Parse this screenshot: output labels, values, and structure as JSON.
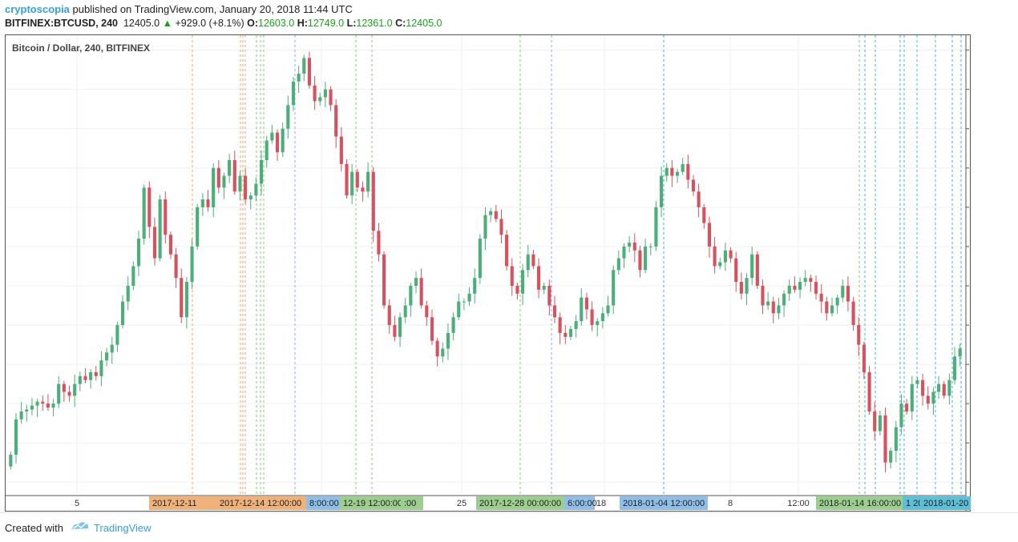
{
  "header": {
    "author": "cryptoscopia",
    "published": "published on TradingView.com, January 20, 2018 11:44 UTC",
    "symbol": "BITFINEX:BTCUSD, 240",
    "last": "12405.0",
    "change": "+929.0 (+8.1%)",
    "o_label": "O:",
    "o_value": "12603.0",
    "h_label": "H:",
    "h_value": "12749.0",
    "l_label": "L:",
    "l_value": "12361.0",
    "c_label": "C:",
    "c_value": "12405.0"
  },
  "footer": {
    "created_with": "Created with",
    "brand": "TradingView"
  },
  "colors": {
    "up": "#4cae79",
    "down": "#d6525f",
    "grid": "#eef0f2",
    "orange": "#f0b27a",
    "green": "#9ccf8f",
    "blue": "#8fbfe8",
    "teal": "#5cc0d8"
  },
  "chart_data": {
    "type": "candlestick",
    "title": "Bitcoin / Dollar, 240, BITFINEX",
    "ylim": [
      8700,
      20400
    ],
    "y_ticks": [
      "20000.0",
      "19000.0",
      "18000.0",
      "17000.0",
      "16000.0",
      "15000.0",
      "14000.0",
      "13000.0",
      "12000.0",
      "11000.0",
      "10000.0",
      "9000.0"
    ],
    "x_tick_labels": [
      "5",
      "20",
      "25",
      "18",
      "8",
      "12:00"
    ],
    "x_highlight_labels": [
      "2017-12-11",
      "2017-12-14 12:00:00",
      "8:00:00",
      "12-19 12:00:00",
      ":00",
      "2017-12-28 00:00:00",
      "6:00:00",
      "2018-01-04 12:00:00",
      "2018-01-14 16:00:00",
      "1 20",
      "2018-01-20 0"
    ],
    "closes": [
      9700,
      10600,
      10800,
      10850,
      10950,
      11050,
      11000,
      10900,
      11000,
      11500,
      11300,
      11200,
      11500,
      11700,
      11600,
      11800,
      11700,
      12100,
      12300,
      12500,
      13000,
      13600,
      14000,
      14500,
      15200,
      16500,
      15500,
      14700,
      16200,
      15300,
      14800,
      14200,
      13200,
      14100,
      15000,
      16000,
      16200,
      16000,
      17000,
      16500,
      16800,
      17200,
      16400,
      16800,
      16200,
      16300,
      16600,
      17200,
      17700,
      17900,
      17400,
      18000,
      18600,
      19200,
      19400,
      19800,
      19100,
      18700,
      18800,
      19000,
      18600,
      17800,
      17100,
      16300,
      16900,
      16500,
      16400,
      16900,
      15400,
      14800,
      13500,
      13000,
      12700,
      13200,
      13500,
      14000,
      14200,
      13500,
      13200,
      12600,
      12200,
      12400,
      12800,
      13200,
      13600,
      13600,
      13800,
      14200,
      15200,
      15800,
      15900,
      15700,
      15300,
      14500,
      14000,
      13800,
      14400,
      14800,
      14500,
      13900,
      14000,
      13500,
      13200,
      12800,
      12700,
      12900,
      13100,
      13700,
      13400,
      13000,
      13100,
      13300,
      13500,
      14400,
      14700,
      15000,
      15100,
      14900,
      14400,
      15000,
      15000,
      16000,
      16800,
      17000,
      16800,
      16900,
      17100,
      16700,
      16400,
      16000,
      15600,
      15000,
      14500,
      14600,
      14900,
      14700,
      14100,
      13800,
      14200,
      14800,
      14000,
      13500,
      13600,
      13300,
      13500,
      13800,
      14000,
      13900,
      14100,
      14200,
      14100,
      13800,
      13600,
      13300,
      13500,
      13700,
      14000,
      13600,
      13000,
      12500,
      11800,
      10800,
      10300,
      10700,
      9500,
      9800,
      10400,
      11000,
      10800,
      11500,
      11600,
      11200,
      11000,
      11300,
      11500,
      11200,
      11600,
      12200,
      12405
    ]
  }
}
